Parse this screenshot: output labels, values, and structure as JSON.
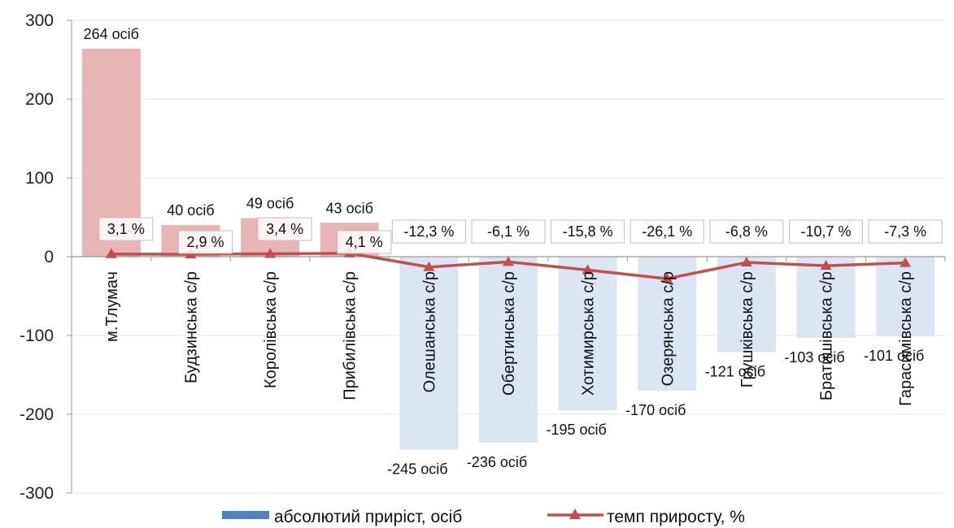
{
  "chart_data": {
    "type": "bar",
    "categories": [
      "м.Тлумач",
      "Будзинська с/р",
      "Королівська с/р",
      "Прибилівська с/р",
      "Олешанська с/р",
      "Обертинська с/р",
      "Хотимирська с/р",
      "Озерянська с/р",
      "Грушківська с/р",
      "Братишівська с/р",
      "Гарасимівська с/р"
    ],
    "ylim": [
      -300,
      300
    ],
    "yticks": [
      300,
      200,
      100,
      0,
      -100,
      -200,
      -300
    ],
    "grid": true,
    "legend_position": "bottom",
    "series": [
      {
        "name": "абсолютий приріст, осіб",
        "type": "bar",
        "values": [
          264,
          40,
          49,
          43,
          -245,
          -236,
          -195,
          -170,
          -121,
          -103,
          -101
        ],
        "labels": [
          "264 осіб",
          "40 осіб",
          "49 осіб",
          "43 осіб",
          "-245 осіб",
          "-236 осіб",
          "-195 осіб",
          "-170 осіб",
          "-121 осіб",
          "-103 осіб",
          "-101 осіб"
        ]
      },
      {
        "name": "темп приросту, %",
        "type": "line",
        "values": [
          3.1,
          2.9,
          3.4,
          4.1,
          -12.3,
          -6.1,
          -15.8,
          -26.1,
          -6.8,
          -10.7,
          -7.3
        ],
        "labels": [
          "3,1 %",
          "2,9 %",
          "3,4 %",
          "4,1 %",
          "-12,3 %",
          "-6,1 %",
          "-15,8 %",
          "-26,1 %",
          "-6,8 %",
          "-10,7 %",
          "-7,3 %"
        ]
      }
    ],
    "colors": {
      "bar_positive": "#e8b4b4",
      "bar_negative": "#dce6f2",
      "legend_bar": "#4f81bd",
      "line": "#c0504d",
      "grid": "#e6e6e6",
      "axis": "#999999"
    }
  }
}
